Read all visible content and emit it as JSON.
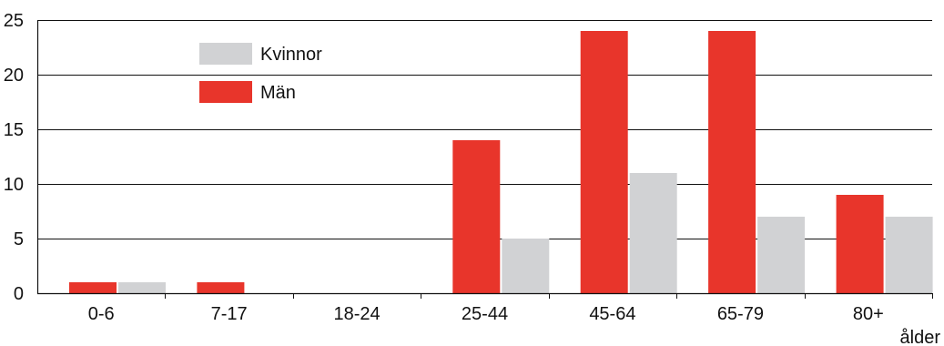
{
  "chart_data": {
    "type": "bar",
    "categories": [
      "0-6",
      "7-17",
      "18-24",
      "25-44",
      "45-64",
      "65-79",
      "80+"
    ],
    "series": [
      {
        "name": "Män",
        "values": [
          1,
          1,
          0,
          14,
          24,
          24,
          9
        ],
        "color": "#e8352b"
      },
      {
        "name": "Kvinnor",
        "values": [
          1,
          0,
          0,
          5,
          11,
          7,
          7
        ],
        "color": "#d1d2d4"
      }
    ],
    "xlabel": "ålder",
    "ylabel": "",
    "ylim": [
      0,
      25
    ],
    "yticks": [
      0,
      5,
      10,
      15,
      20,
      25
    ],
    "grid": true,
    "legend": {
      "placement": "top-left",
      "order": [
        "Kvinnor",
        "Män"
      ]
    }
  }
}
